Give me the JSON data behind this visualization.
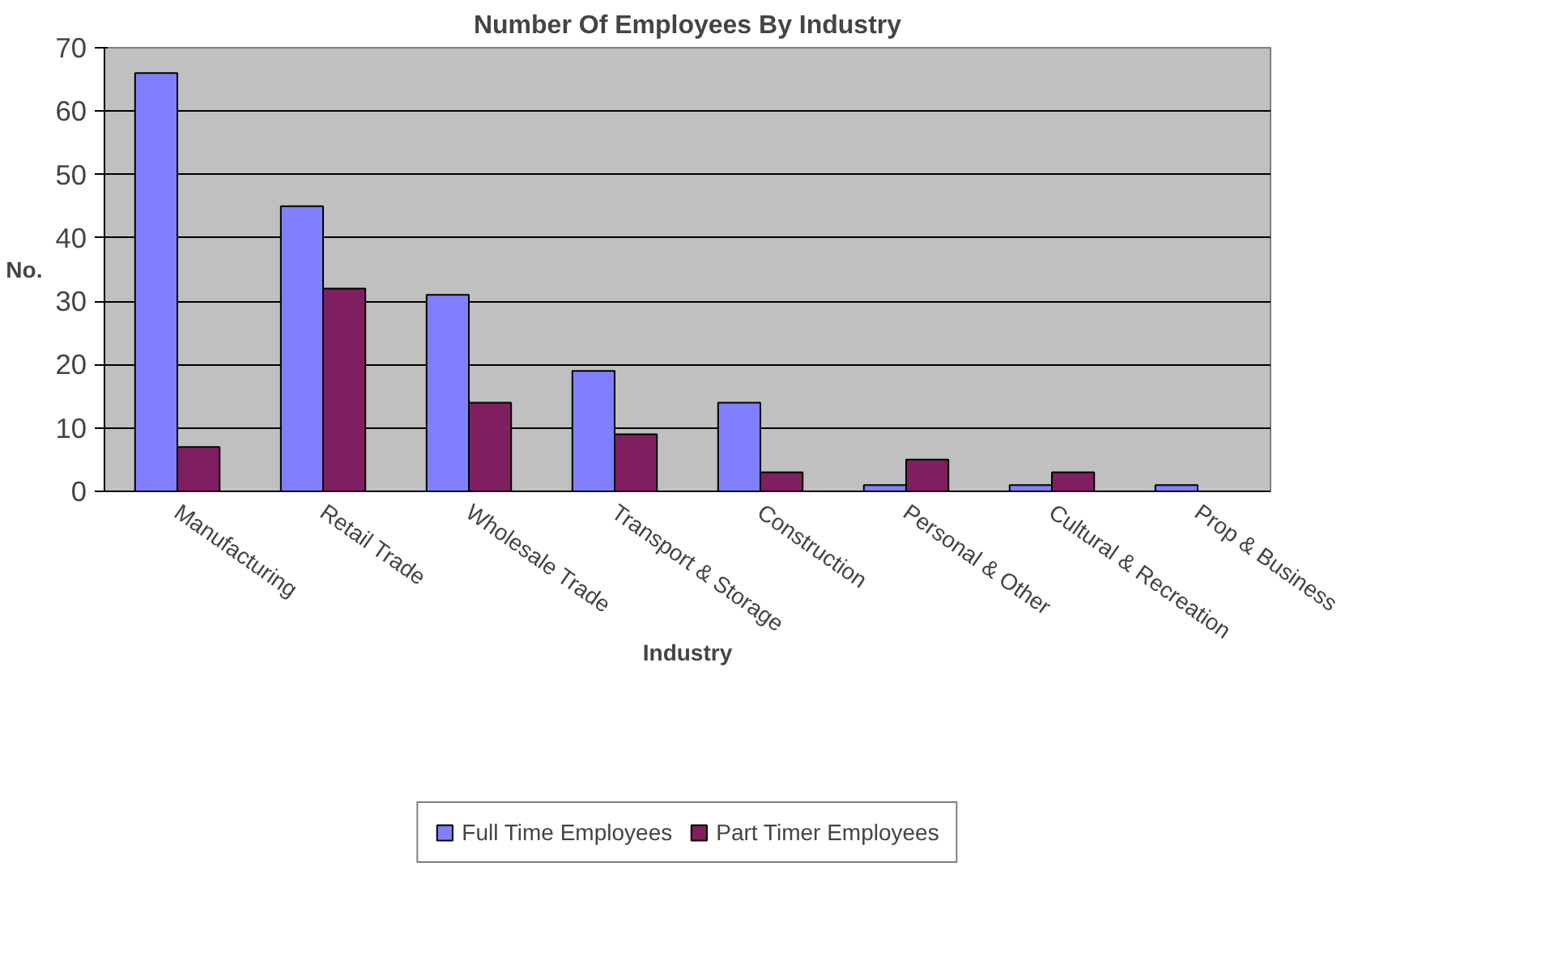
{
  "chart_data": {
    "type": "bar",
    "title": "Number Of Employees By Industry",
    "xlabel": "Industry",
    "ylabel": "No.",
    "categories": [
      "Manufacturing",
      "Retail Trade",
      "Wholesale Trade",
      "Transport & Storage",
      "Construction",
      "Personal & Other",
      "Cultural & Recreation",
      "Prop & Business"
    ],
    "series": [
      {
        "name": "Full Time Employees",
        "color": "#8080ff",
        "values": [
          66,
          45,
          31,
          19,
          14,
          1,
          1,
          1
        ]
      },
      {
        "name": "Part Timer Employees",
        "color": "#7f1f5f",
        "values": [
          7,
          32,
          14,
          9,
          3,
          5,
          3,
          null
        ]
      }
    ],
    "ylim": [
      0,
      70
    ],
    "yticks": [
      0,
      10,
      20,
      30,
      40,
      50,
      60,
      70
    ],
    "grid": "y",
    "legend": "bottom"
  }
}
